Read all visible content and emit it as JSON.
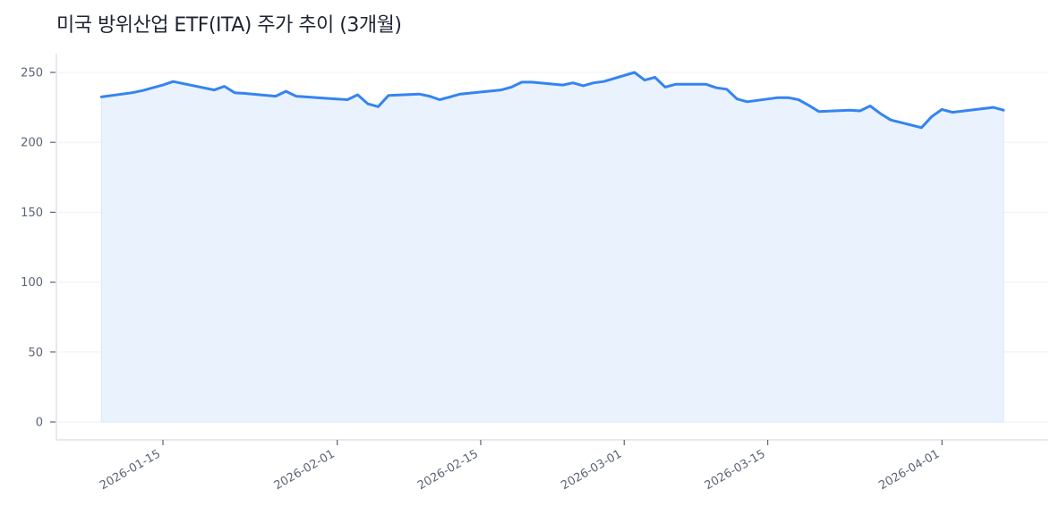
{
  "title": "미국 방위산업 ETF(ITA) 주가 추이 (3개월)",
  "colors": {
    "line": "#3584f0",
    "fill": "#eaf2fe",
    "grid": "#eef0f4",
    "axis": "#dfe2e8",
    "tick_text": "#5b6475",
    "title_text": "#1f2433"
  },
  "chart_data": {
    "type": "area",
    "title": "미국 방위산업 ETF(ITA) 주가 추이 (3개월)",
    "xlabel": "",
    "ylabel": "",
    "ylim": [
      0,
      262
    ],
    "yticks": [
      0,
      50,
      100,
      150,
      200,
      250
    ],
    "xticks": [
      "2026-01-15",
      "2026-02-01",
      "2026-02-15",
      "2026-03-01",
      "2026-03-15",
      "2026-04-01"
    ],
    "grid": true,
    "legend": null,
    "x": [
      "2026-01-09",
      "2026-01-12",
      "2026-01-13",
      "2026-01-14",
      "2026-01-15",
      "2026-01-16",
      "2026-01-20",
      "2026-01-21",
      "2026-01-22",
      "2026-01-23",
      "2026-01-26",
      "2026-01-27",
      "2026-01-28",
      "2026-01-29",
      "2026-01-30",
      "2026-02-02",
      "2026-02-03",
      "2026-02-04",
      "2026-02-05",
      "2026-02-06",
      "2026-02-09",
      "2026-02-10",
      "2026-02-11",
      "2026-02-12",
      "2026-02-13",
      "2026-02-17",
      "2026-02-18",
      "2026-02-19",
      "2026-02-20",
      "2026-02-23",
      "2026-02-24",
      "2026-02-25",
      "2026-02-26",
      "2026-02-27",
      "2026-03-02",
      "2026-03-03",
      "2026-03-04",
      "2026-03-05",
      "2026-03-06",
      "2026-03-09",
      "2026-03-10",
      "2026-03-11",
      "2026-03-12",
      "2026-03-13",
      "2026-03-16",
      "2026-03-17",
      "2026-03-18",
      "2026-03-19",
      "2026-03-20",
      "2026-03-23",
      "2026-03-24",
      "2026-03-25",
      "2026-03-26",
      "2026-03-27",
      "2026-03-30",
      "2026-03-31",
      "2026-04-01",
      "2026-04-02",
      "2026-04-06",
      "2026-04-07"
    ],
    "series": [
      {
        "name": "ITA",
        "values": [
          232.5,
          235.5,
          237,
          239,
          241,
          243.5,
          237.5,
          240,
          235.5,
          235,
          233,
          236.5,
          233,
          232.5,
          232,
          230.5,
          234,
          227.5,
          225.5,
          233.5,
          234.5,
          233,
          230.5,
          232.5,
          234.5,
          237.5,
          239.5,
          243,
          243,
          241,
          242.5,
          240.5,
          242.5,
          243.5,
          250,
          244.5,
          246.5,
          239.5,
          241.5,
          241.5,
          239,
          238,
          231,
          229,
          232,
          232,
          230.5,
          226.5,
          222,
          223,
          222.5,
          226,
          220.5,
          216,
          210.5,
          218.5,
          223.5,
          221.5,
          225,
          223
        ]
      }
    ]
  }
}
